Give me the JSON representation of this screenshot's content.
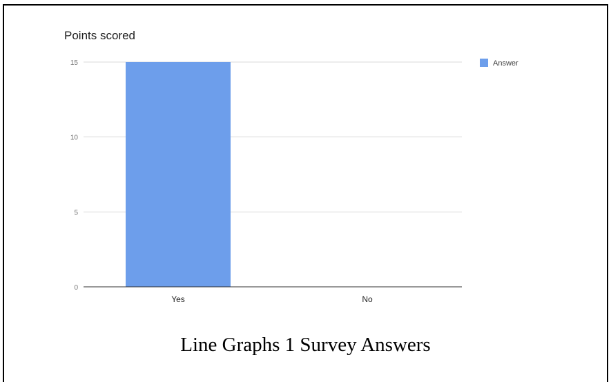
{
  "chart_data": {
    "type": "bar",
    "title": "Points scored",
    "categories": [
      "Yes",
      "No"
    ],
    "series": [
      {
        "name": "Answer",
        "values": [
          15,
          0
        ]
      }
    ],
    "yticks": [
      "0",
      "5",
      "10",
      "15"
    ],
    "ylim": [
      0,
      15
    ],
    "grid": true,
    "legend": "right",
    "color": "#6d9eeb"
  },
  "caption": "Line Graphs 1 Survey Answers"
}
